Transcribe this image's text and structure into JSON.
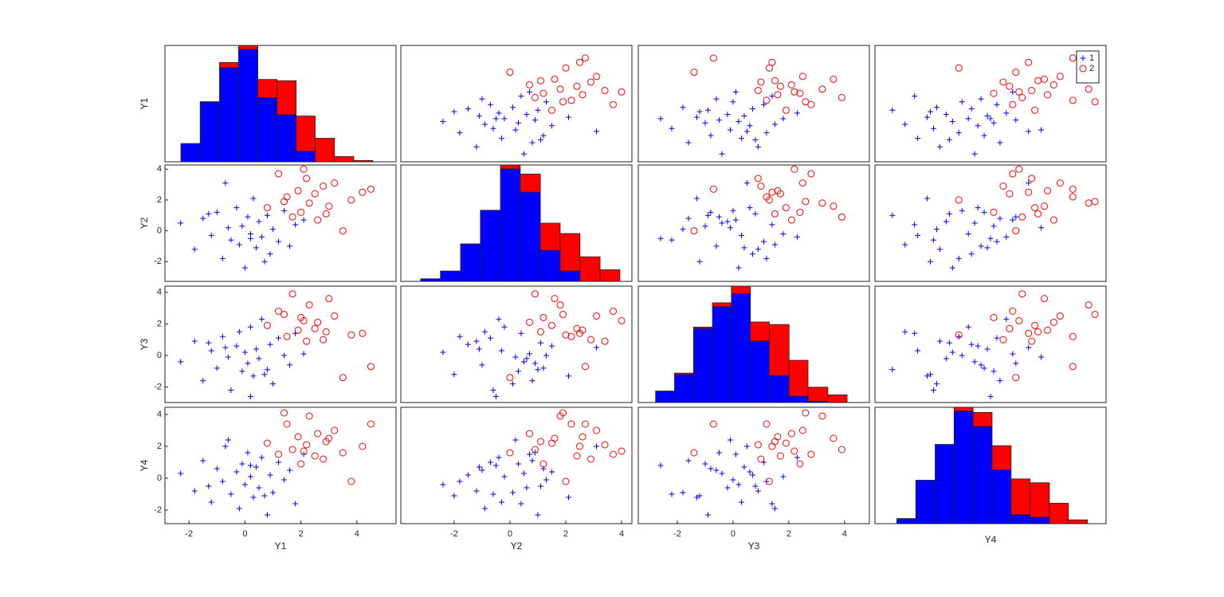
{
  "chart_data": {
    "type": "scatter_matrix",
    "variables": [
      {
        "name": "Y1",
        "xlim": [
          -2.86,
          5.4
        ],
        "ylim": [
          -2.86,
          5.4
        ],
        "xticks": [
          -2,
          0,
          2,
          4
        ]
      },
      {
        "name": "Y2",
        "xlim": [
          -3.91,
          4.37
        ],
        "ylim": [
          -3.28,
          4.27
        ],
        "xticks": [
          -2,
          0,
          2,
          4
        ],
        "yticks": [
          -2,
          0,
          2,
          4
        ]
      },
      {
        "name": "Y3",
        "xlim": [
          -3.4,
          4.89
        ],
        "ylim": [
          -2.98,
          4.39
        ],
        "xticks": [
          -2,
          0,
          2,
          4
        ],
        "yticks": [
          -2,
          0,
          2,
          4
        ]
      },
      {
        "name": "Y4",
        "xlim": [
          -2.85,
          4.45
        ],
        "ylim": [
          -2.85,
          4.45
        ],
        "yticks": [
          -2,
          0,
          2,
          4
        ]
      }
    ],
    "groups": [
      {
        "name": "1",
        "color": "#0000ff",
        "marker": "+",
        "values": [
          [
            -2.3,
            -1.8,
            -1.5,
            -1.2,
            -1.0,
            -0.8,
            -0.6,
            -0.5,
            -0.3,
            -0.2,
            -0.1,
            0,
            0.1,
            0.2,
            0.3,
            0.4,
            0.5,
            0.6,
            0.8,
            0.9,
            1.0,
            1.2,
            1.4,
            1.6,
            1.8,
            -0.7,
            0.2,
            -1.3,
            0.7,
            2.1
          ],
          [
            0.5,
            -1.2,
            0.8,
            -0.3,
            1.2,
            -1.8,
            0.2,
            -0.6,
            1.5,
            -0.9,
            0.3,
            -2.4,
            0.9,
            -0.2,
            2.1,
            -1.1,
            0.6,
            -0.4,
            1.0,
            -1.5,
            0.1,
            -0.7,
            1.3,
            -1.0,
            0.4,
            3.1,
            -0.5,
            1.1,
            -2.0,
            0.7
          ],
          [
            -0.4,
            0.9,
            -1.6,
            0.3,
            -0.8,
            1.2,
            -0.1,
            -2.2,
            0.6,
            1.5,
            -1.0,
            0.2,
            -0.5,
            1.8,
            -1.3,
            0.4,
            -0.2,
            2.3,
            -0.9,
            0.7,
            -1.8,
            1.1,
            0.0,
            -0.6,
            1.4,
            0.5,
            -2.6,
            0.8,
            -1.2,
            0.1
          ],
          [
            0.3,
            -0.8,
            1.1,
            -1.5,
            0.6,
            -0.2,
            2.4,
            -1.0,
            0.4,
            -1.9,
            0.9,
            -0.4,
            1.6,
            0.1,
            -1.2,
            0.7,
            -0.6,
            1.3,
            -2.3,
            0.2,
            -0.9,
            1.0,
            -0.1,
            0.5,
            -1.6,
            2.0,
            0.8,
            -0.5,
            -1.1,
            1.5
          ]
        ]
      },
      {
        "name": "2",
        "color": "#ff0000",
        "marker": "o",
        "values": [
          [
            0.8,
            1.2,
            1.5,
            1.7,
            1.9,
            2.0,
            2.2,
            2.3,
            2.5,
            2.6,
            2.8,
            3.0,
            3.2,
            3.5,
            3.8,
            4.2,
            4.5,
            1.4,
            2.1,
            2.9
          ],
          [
            1.5,
            3.7,
            2.2,
            0.9,
            2.6,
            1.2,
            3.4,
            1.8,
            2.4,
            0.7,
            2.9,
            1.6,
            3.1,
            0.0,
            2.0,
            2.5,
            2.7,
            1.9,
            4.0,
            1.1
          ],
          [
            1.9,
            2.8,
            1.2,
            3.9,
            1.6,
            2.4,
            0.9,
            3.2,
            1.7,
            2.1,
            1.0,
            3.6,
            2.5,
            -1.4,
            1.3,
            1.4,
            -0.7,
            2.6,
            2.2,
            1.5
          ],
          [
            2.2,
            1.5,
            3.4,
            1.8,
            2.6,
            0.9,
            2.1,
            3.9,
            1.4,
            2.8,
            1.2,
            2.5,
            3.0,
            1.6,
            -0.2,
            2.0,
            3.4,
            4.1,
            1.7,
            2.3
          ]
        ]
      }
    ],
    "histograms": [
      {
        "bins": [
          -2.29,
          -1.6,
          -0.91,
          -0.23,
          0.46,
          1.14,
          1.83,
          2.51,
          3.2,
          3.89,
          4.57
        ],
        "counts": [
          [
            14,
            46,
            72,
            86,
            49,
            36,
            8,
            0,
            0,
            0
          ],
          [
            0,
            0,
            4,
            3,
            14,
            26,
            27,
            18,
            4,
            1
          ]
        ]
      },
      {
        "bins": [
          -3.2,
          -2.49,
          -1.77,
          -1.06,
          -0.34,
          0.37,
          1.09,
          1.8,
          2.51,
          3.23,
          3.94
        ],
        "counts": [
          [
            2,
            8,
            29,
            55,
            87,
            69,
            24,
            8,
            0,
            0
          ],
          [
            0,
            0,
            0,
            0,
            3,
            14,
            21,
            29,
            19,
            9
          ]
        ]
      },
      {
        "bins": [
          -2.78,
          -2.1,
          -1.42,
          -0.74,
          -0.06,
          0.62,
          1.3,
          2.01,
          2.69,
          3.4,
          4.09
        ],
        "counts": [
          [
            9,
            22,
            58,
            75,
            85,
            48,
            21,
            5,
            1,
            0
          ],
          [
            0,
            1,
            1,
            3,
            6,
            15,
            40,
            28,
            11,
            6
          ]
        ]
      },
      {
        "bins": [
          -2.16,
          -1.56,
          -0.95,
          -0.35,
          0.25,
          0.85,
          1.45,
          2.05,
          2.66,
          3.26,
          3.86
        ],
        "counts": [
          [
            4,
            34,
            62,
            88,
            76,
            42,
            7,
            5,
            0,
            0
          ],
          [
            0,
            0,
            0,
            3,
            11,
            19,
            28,
            27,
            16,
            3
          ]
        ]
      }
    ],
    "legend": "upper right"
  }
}
